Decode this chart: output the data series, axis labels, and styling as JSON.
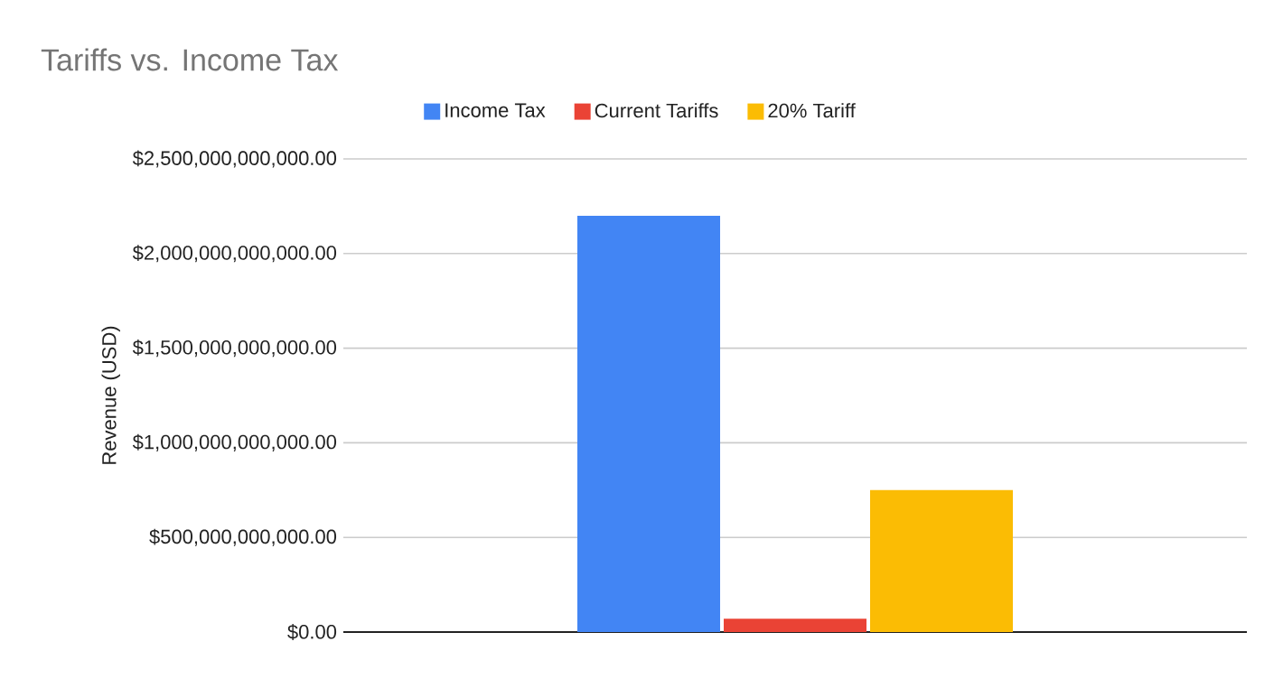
{
  "chart_data": {
    "type": "bar",
    "title": "Tariffs vs. Income Tax",
    "ylabel": "Revenue (USD)",
    "categories": [
      null
    ],
    "series": [
      {
        "name": "Income Tax",
        "color": "#4285f4",
        "values": [
          2200000000000
        ]
      },
      {
        "name": "Current Tariffs",
        "color": "#ea4335",
        "values": [
          70000000000
        ]
      },
      {
        "name": "20% Tariff",
        "color": "#fbbc04",
        "values": [
          750000000000
        ]
      }
    ],
    "ylim": [
      0,
      2500000000000
    ],
    "yticks": [
      {
        "value": 0,
        "label": "$0.00"
      },
      {
        "value": 500000000000,
        "label": "$500,000,000,000.00"
      },
      {
        "value": 1000000000000,
        "label": "$1,000,000,000,000.00"
      },
      {
        "value": 1500000000000,
        "label": "$1,500,000,000,000.00"
      },
      {
        "value": 2000000000000,
        "label": "$2,000,000,000,000.00"
      },
      {
        "value": 2500000000000,
        "label": "$2,500,000,000,000.00"
      }
    ],
    "grid": "y",
    "legend": "top"
  }
}
